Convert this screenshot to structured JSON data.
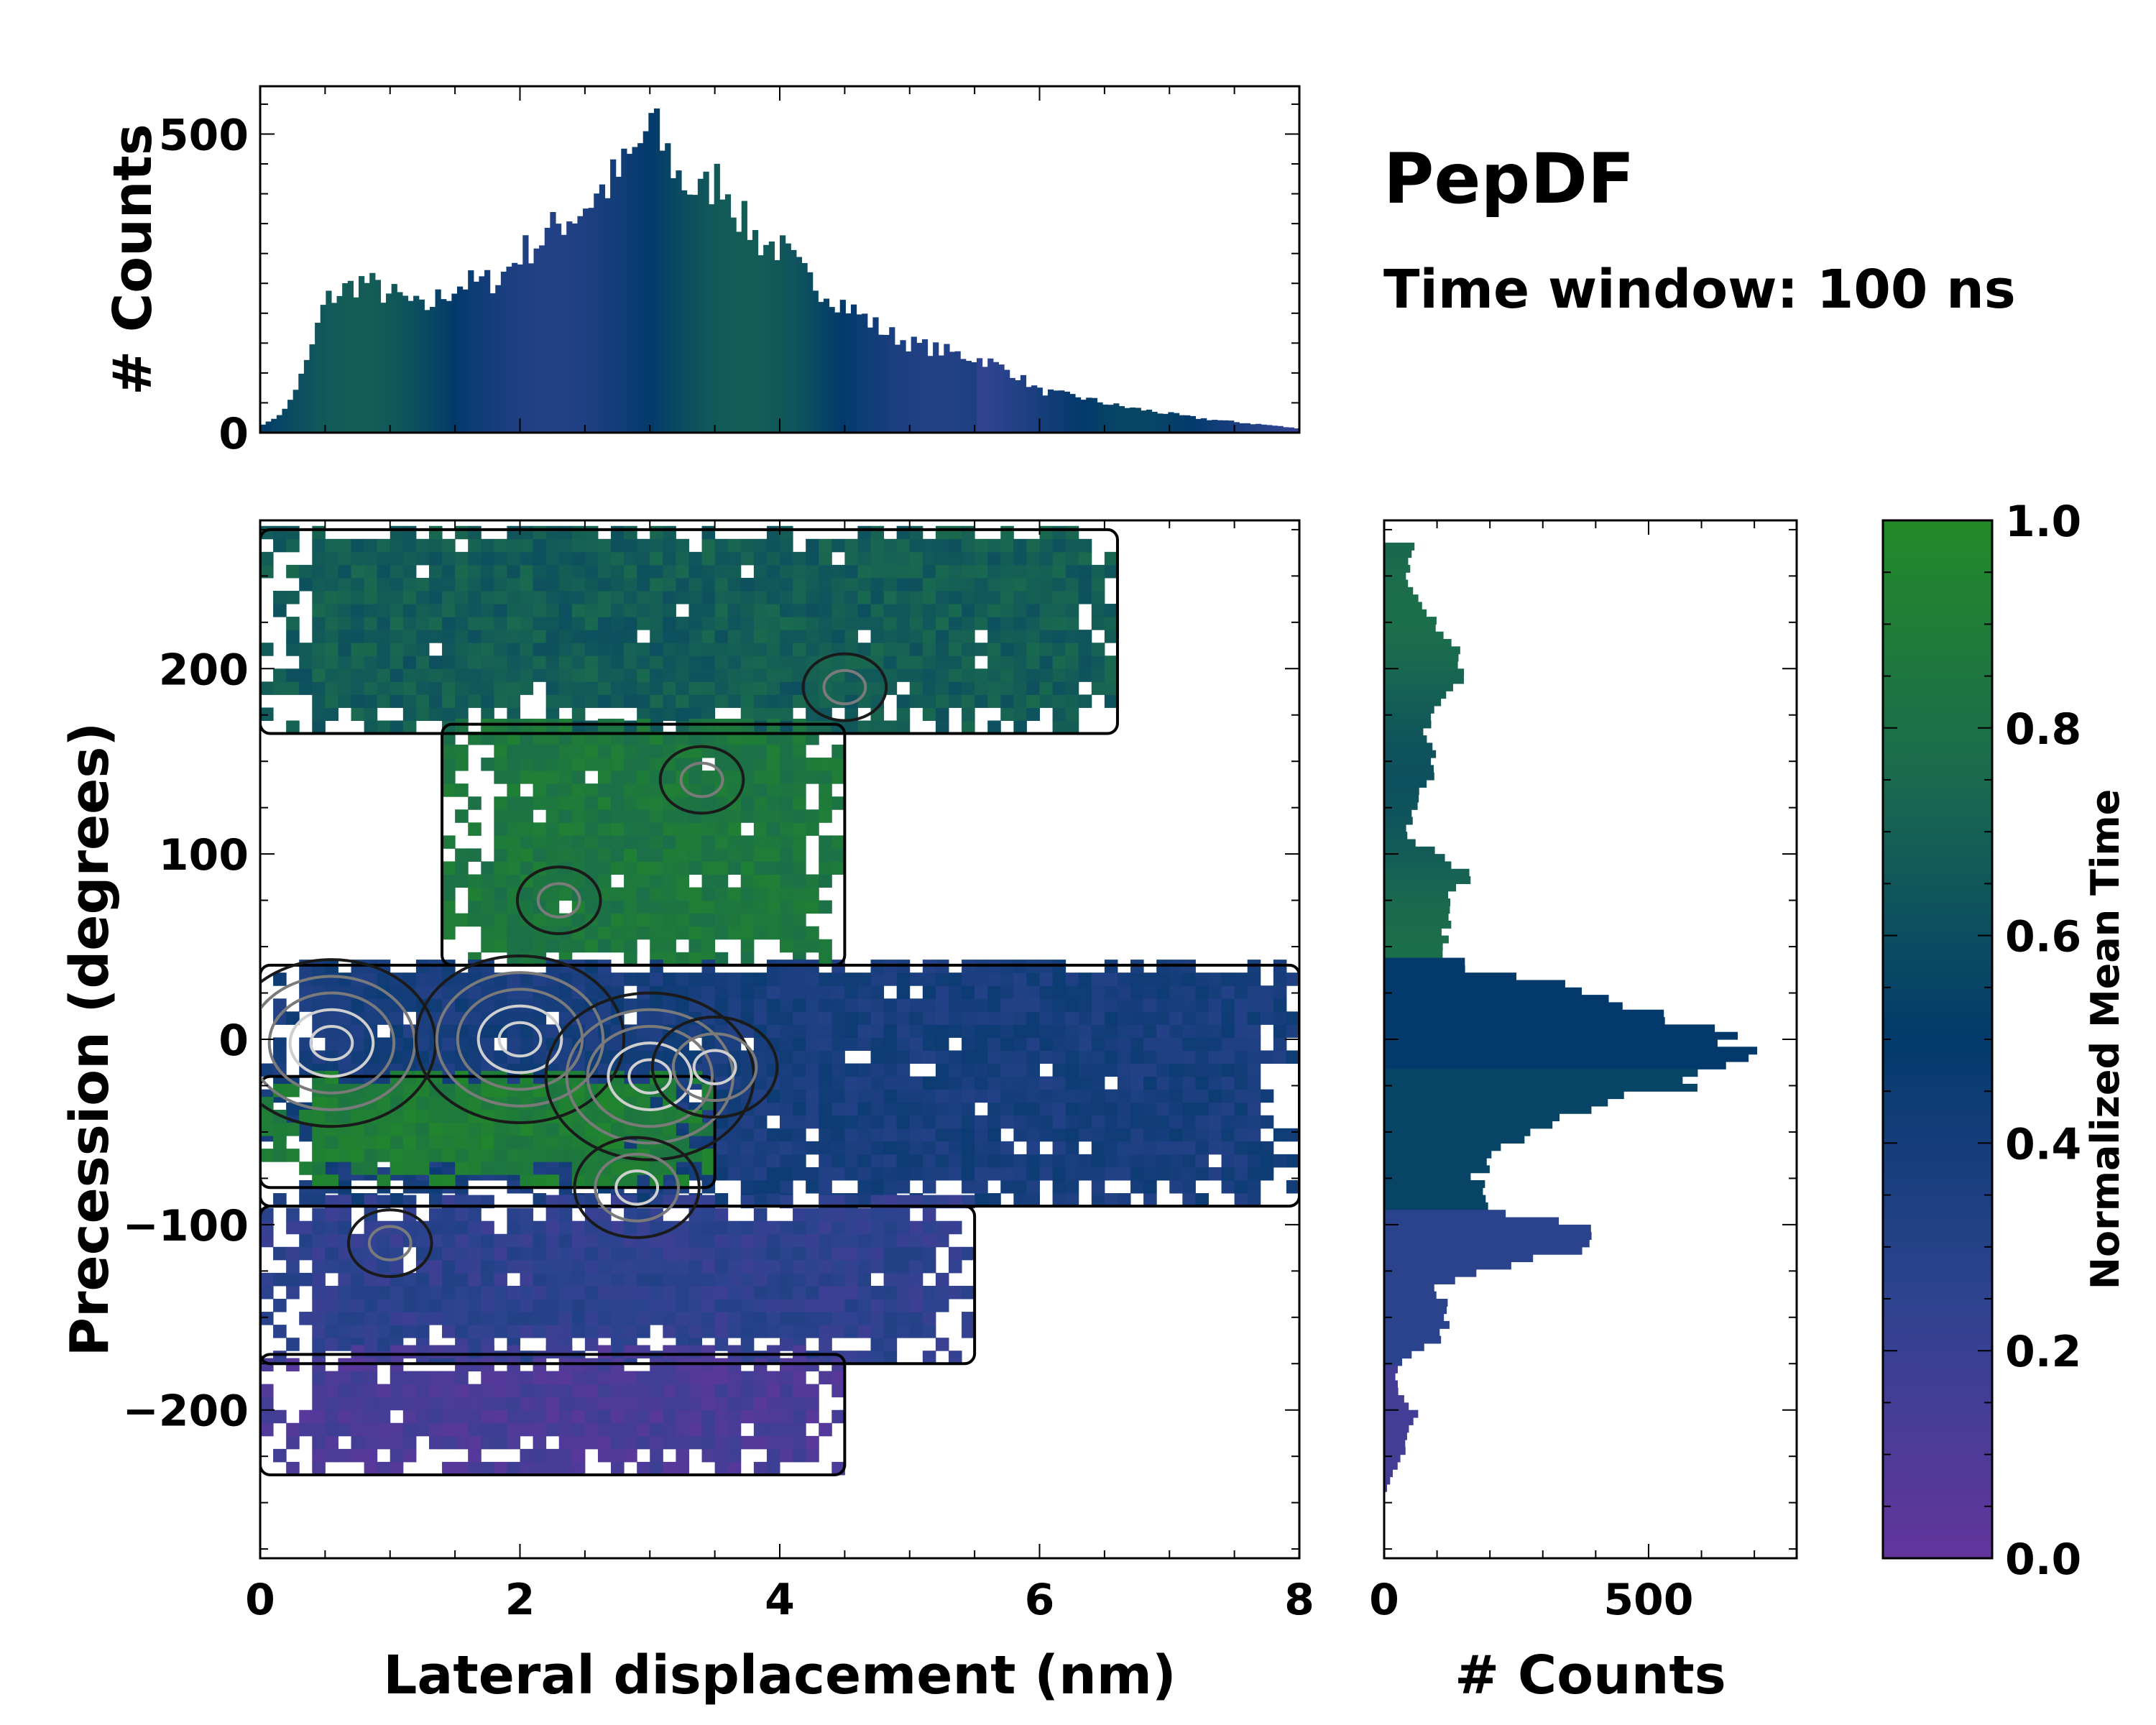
{
  "title": "PepDF",
  "subtitle": "Time window: 100 ns",
  "colors": {
    "low": "#64359e",
    "lowmid": "#2e4390",
    "mid": "#033a6b",
    "midhigh": "#1a6a4f",
    "high": "#228a28",
    "contour_light": "#cfcfcf",
    "contour_mid": "#7a7a7a",
    "contour_dark": "#1a1a1a"
  },
  "chart_data": [
    {
      "name": "top-histogram",
      "type": "bar",
      "xlabel": "",
      "ylabel": "# Counts",
      "xlim": [
        0,
        8
      ],
      "ylim": [
        0,
        580
      ],
      "yticks": [
        0,
        500
      ],
      "ytick_labels": [
        "0",
        "500"
      ],
      "bin_edges_x": [
        0,
        0.5,
        0.75,
        1.0,
        1.25,
        1.5,
        1.75,
        2.0,
        2.25,
        2.5,
        2.75,
        3.0,
        3.25,
        3.5,
        3.75,
        4.0,
        4.25,
        4.5,
        4.75,
        5.0,
        5.5,
        6.0,
        6.5,
        7.0,
        7.5,
        8.0
      ],
      "series": [
        {
          "name": "lateral-displacement-counts",
          "x": [
            0.05,
            0.2,
            0.35,
            0.5,
            0.65,
            0.8,
            0.95,
            1.1,
            1.25,
            1.4,
            1.55,
            1.7,
            1.85,
            2.0,
            2.15,
            2.3,
            2.45,
            2.6,
            2.75,
            2.9,
            3.0,
            3.1,
            3.25,
            3.4,
            3.55,
            3.7,
            3.85,
            4.0,
            4.2,
            4.4,
            4.6,
            4.8,
            5.0,
            5.2,
            5.4,
            5.6,
            5.8,
            6.0,
            6.3,
            6.6,
            6.9,
            7.2,
            7.5,
            7.8,
            7.95
          ],
          "values": [
            15,
            40,
            110,
            220,
            240,
            255,
            235,
            225,
            205,
            230,
            250,
            250,
            260,
            300,
            320,
            350,
            370,
            400,
            430,
            470,
            520,
            480,
            420,
            400,
            430,
            360,
            320,
            310,
            260,
            230,
            200,
            170,
            150,
            140,
            130,
            120,
            100,
            70,
            60,
            45,
            35,
            25,
            18,
            12,
            8
          ]
        }
      ]
    },
    {
      "name": "main-heatmap",
      "type": "heatmap",
      "xlabel": "Lateral displacement (nm)",
      "ylabel": "Precession (degrees)",
      "xlim": [
        0,
        8
      ],
      "ylim": [
        -280,
        280
      ],
      "xticks": [
        0,
        2,
        4,
        6,
        8
      ],
      "xtick_labels": [
        "0",
        "2",
        "4",
        "6",
        "8"
      ],
      "yticks": [
        -200,
        -100,
        0,
        100,
        200
      ],
      "ytick_labels": [
        "−200",
        "−100",
        "0",
        "100",
        "200"
      ],
      "color_value_name": "Normalized Mean Time",
      "regions": [
        {
          "name": "upper-band",
          "x_range": [
            0.0,
            6.6
          ],
          "y_range": [
            165,
            275
          ],
          "mean_time": 0.68
        },
        {
          "name": "upper-middle-band",
          "x_range": [
            1.4,
            4.5
          ],
          "y_range": [
            40,
            170
          ],
          "mean_time": 0.85
        },
        {
          "name": "central-band",
          "x_range": [
            0.0,
            8.0
          ],
          "y_range": [
            -90,
            40
          ],
          "mean_time": 0.38
        },
        {
          "name": "central-left-green",
          "x_range": [
            0.0,
            3.5
          ],
          "y_range": [
            -80,
            -20
          ],
          "mean_time": 0.9
        },
        {
          "name": "lower-band",
          "x_range": [
            0.0,
            5.5
          ],
          "y_range": [
            -175,
            -90
          ],
          "mean_time": 0.25
        },
        {
          "name": "bottom-band",
          "x_range": [
            0.0,
            4.5
          ],
          "y_range": [
            -235,
            -170
          ],
          "mean_time": 0.12
        }
      ],
      "density_peaks": [
        {
          "x": 0.55,
          "y": -2,
          "level": "high"
        },
        {
          "x": 2.0,
          "y": 0,
          "level": "high"
        },
        {
          "x": 3.0,
          "y": -20,
          "level": "high"
        },
        {
          "x": 3.5,
          "y": -15,
          "level": "medium"
        },
        {
          "x": 2.9,
          "y": -80,
          "level": "medium"
        },
        {
          "x": 1.0,
          "y": -110,
          "level": "low"
        },
        {
          "x": 3.4,
          "y": 140,
          "level": "low"
        },
        {
          "x": 4.5,
          "y": 190,
          "level": "low"
        },
        {
          "x": 2.3,
          "y": 75,
          "level": "low"
        }
      ]
    },
    {
      "name": "right-histogram",
      "type": "bar",
      "orientation": "horizontal",
      "xlabel": "# Counts",
      "ylabel": "",
      "xlim": [
        0,
        780
      ],
      "ylim": [
        -280,
        280
      ],
      "xticks": [
        0,
        500
      ],
      "xtick_labels": [
        "0",
        "500"
      ],
      "series": [
        {
          "name": "precession-counts",
          "y": [
            270,
            250,
            230,
            210,
            200,
            190,
            170,
            150,
            130,
            110,
            100,
            90,
            80,
            70,
            60,
            50,
            40,
            30,
            20,
            10,
            0,
            -10,
            -20,
            -30,
            -40,
            -50,
            -60,
            -70,
            -80,
            -90,
            -100,
            -110,
            -120,
            -130,
            -140,
            -150,
            -160,
            -170,
            -180,
            -190,
            -200,
            -210,
            -220,
            -230,
            -240
          ],
          "values": [
            60,
            40,
            90,
            140,
            160,
            120,
            80,
            100,
            60,
            40,
            120,
            160,
            110,
            130,
            120,
            100,
            170,
            350,
            450,
            560,
            640,
            700,
            620,
            460,
            340,
            290,
            200,
            180,
            170,
            200,
            380,
            410,
            220,
            100,
            110,
            120,
            100,
            40,
            20,
            30,
            60,
            50,
            40,
            20,
            5
          ]
        }
      ]
    },
    {
      "name": "colorbar",
      "type": "colorbar",
      "label": "Normalized Mean Time",
      "range": [
        0.0,
        1.0
      ],
      "ticks": [
        0.0,
        0.2,
        0.4,
        0.6,
        0.8,
        1.0
      ],
      "tick_labels": [
        "0.0",
        "0.2",
        "0.4",
        "0.6",
        "0.8",
        "1.0"
      ]
    }
  ]
}
